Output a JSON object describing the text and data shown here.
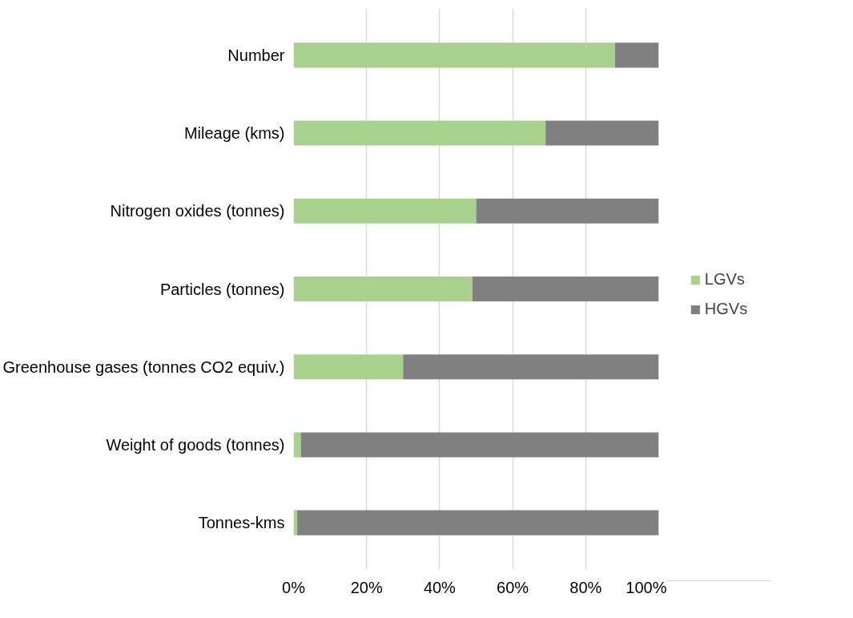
{
  "chart_data": {
    "type": "bar",
    "orientation": "horizontal",
    "stacked": true,
    "categories": [
      "Number",
      "Mileage (kms)",
      "Nitrogen oxides (tonnes)",
      "Particles (tonnes)",
      "Greenhouse gases (tonnes CO2 equiv.)",
      "Weight of goods (tonnes)",
      "Tonnes-kms"
    ],
    "series": [
      {
        "name": "LGVs",
        "color": "#a9d18e",
        "values": [
          88,
          69,
          50,
          49,
          30,
          2,
          1
        ]
      },
      {
        "name": "HGVs",
        "color": "#808080",
        "values": [
          12,
          31,
          50,
          51,
          70,
          98,
          99
        ]
      }
    ],
    "xlim": [
      0,
      100
    ],
    "xticks": [
      {
        "value": 0,
        "label": "0%"
      },
      {
        "value": 20,
        "label": "20%"
      },
      {
        "value": 40,
        "label": "40%"
      },
      {
        "value": 60,
        "label": "60%"
      },
      {
        "value": 80,
        "label": "80%"
      },
      {
        "value": 100,
        "label": "100%"
      }
    ],
    "grid": "x",
    "legend": "right"
  }
}
